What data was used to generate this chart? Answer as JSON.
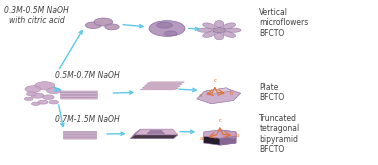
{
  "background_color": "#ffffff",
  "labels": {
    "top_left": "0.3M-0.5M NaOH\nwith citric acid",
    "mid_left": "0.5M-0.7M NaOH",
    "bot_left": "0.7M-1.5M NaOH",
    "top_right": "Vertical\nmicroflowers\nBFCTO",
    "mid_right": "Plate\nBFCTO",
    "bot_right": "Truncated\ntetragonal\nbipyramid\nBFCTO"
  },
  "arrow_color": "#5bc8e8",
  "sphere_color": "#c9a8c9",
  "sphere_edge": "#b090b0",
  "plate_color": "#d4adc4",
  "plate_edge": "#b090b0",
  "axis_color": "#e07030",
  "label_fontsize": 5.5,
  "label_color": "#404040",
  "fig_width": 3.78,
  "fig_height": 1.65,
  "dpi": 100
}
